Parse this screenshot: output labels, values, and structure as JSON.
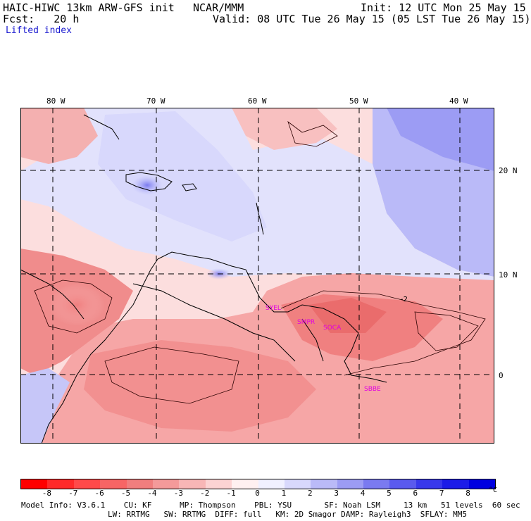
{
  "header": {
    "model_title": "HAIC-HIWC 13km ARW-GFS init",
    "org": "NCAR/MMM",
    "init": "Init: 12 UTC Mon 25 May 15",
    "fcst": "Fcst:   20 h",
    "valid": "Valid: 08 UTC Tue 26 May 15 (05 LST Tue 26 May 15)",
    "field": "Lifted index"
  },
  "map": {
    "lon_labels": [
      "80 W",
      "70 W",
      "60 W",
      "50 W",
      "40 W"
    ],
    "lat_labels": [
      "20 N",
      "10 N",
      "0"
    ],
    "stations": [
      "SYEL",
      "SMPR",
      "SOCA",
      "SBBE"
    ],
    "contour_label": "-2"
  },
  "colorbar": {
    "labels": [
      "-8",
      "-7",
      "-6",
      "-5",
      "-4",
      "-3",
      "-2",
      "-1",
      "0",
      "1",
      "2",
      "3",
      "4",
      "5",
      "6",
      "7",
      "8"
    ],
    "unit": "°C",
    "colors": [
      "#ff0000",
      "#ff2a2a",
      "#ff4a4a",
      "#f76565",
      "#f07e7e",
      "#f49a9a",
      "#f8b6b6",
      "#fcd3d3",
      "#fff0f0",
      "#f0f0ff",
      "#d8d8fc",
      "#babaf8",
      "#9c9cf4",
      "#7a7af0",
      "#5a5aee",
      "#3838ec",
      "#1c1ce8",
      "#0000e0"
    ]
  },
  "footer": {
    "line1": "Model Info: V3.6.1    CU: KF      MP: Thompson    PBL: YSU       SF: Noah LSM     13 km   51 levels  60 sec",
    "line2": "LW: RRTMG   SW: RRTMG  DIFF: full   KM: 2D Smagor DAMP: Rayleigh3  SFLAY: MM5"
  }
}
